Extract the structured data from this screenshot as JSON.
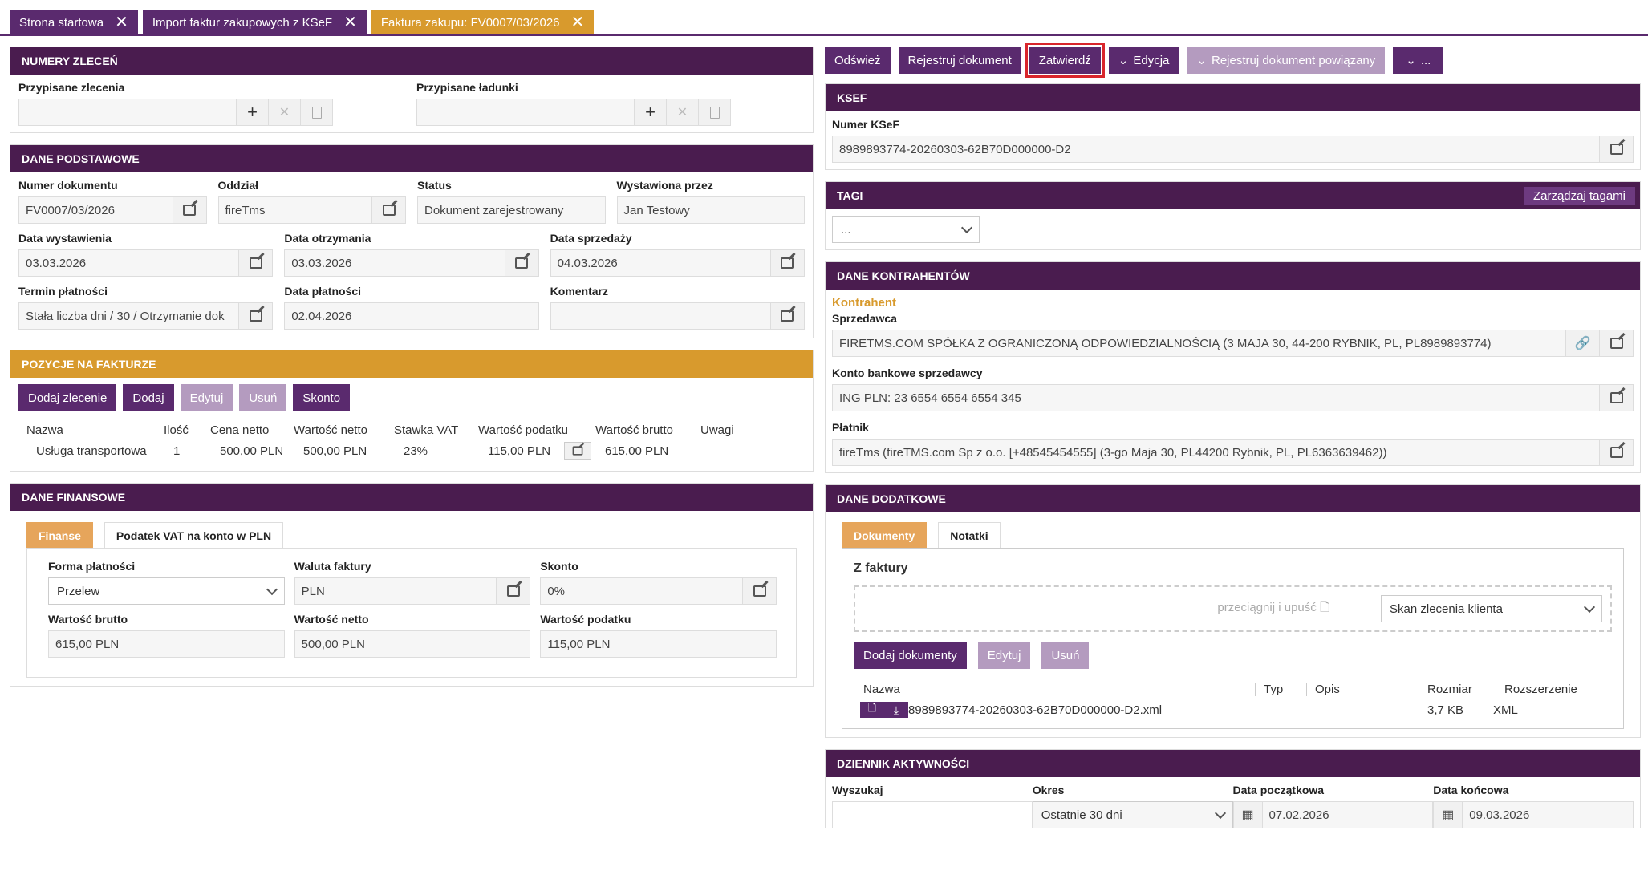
{
  "tabs": [
    {
      "label": "Strona startowa"
    },
    {
      "label": "Import faktur zakupowych z KSeF"
    },
    {
      "label": "Faktura zakupu: FV0007/03/2026"
    }
  ],
  "numery_zlecen": {
    "title": "NUMERY ZLECEŃ",
    "assigned_orders_label": "Przypisane zlecenia",
    "assigned_loads_label": "Przypisane ładunki"
  },
  "dane_podstawowe": {
    "title": "DANE PODSTAWOWE",
    "numer_label": "Numer dokumentu",
    "numer": "FV0007/03/2026",
    "oddzial_label": "Oddział",
    "oddzial": "fireTms",
    "status_label": "Status",
    "status": "Dokument zarejestrowany",
    "wystawiona_label": "Wystawiona przez",
    "wystawiona": "Jan Testowy",
    "data_wyst_label": "Data wystawienia",
    "data_wyst": "03.03.2026",
    "data_otrz_label": "Data otrzymania",
    "data_otrz": "03.03.2026",
    "data_sprz_label": "Data sprzedaży",
    "data_sprz": "04.03.2026",
    "termin_label": "Termin płatności",
    "termin": "Stała liczba dni / 30 / Otrzymanie dok",
    "data_plat_label": "Data płatności",
    "data_plat": "02.04.2026",
    "komentarz_label": "Komentarz",
    "komentarz": ""
  },
  "pozycje": {
    "title": "POZYCJE NA FAKTURZE",
    "buttons": [
      "Dodaj zlecenie",
      "Dodaj",
      "Edytuj",
      "Usuń",
      "Skonto"
    ],
    "headers": [
      "Nazwa",
      "Ilość",
      "Cena netto",
      "Wartość netto",
      "Stawka VAT",
      "Wartość podatku",
      "Wartość brutto",
      "Uwagi"
    ],
    "rows": [
      [
        "Usługa transportowa",
        "1",
        "500,00 PLN",
        "500,00 PLN",
        "23%",
        "115,00 PLN",
        "615,00 PLN",
        ""
      ]
    ]
  },
  "finanse": {
    "title": "DANE FINANSOWE",
    "tabs": [
      "Finanse",
      "Podatek VAT na konto w PLN"
    ],
    "forma_label": "Forma płatności",
    "forma": "Przelew",
    "waluta_label": "Waluta faktury",
    "waluta": "PLN",
    "skonto_label": "Skonto",
    "skonto": "0%",
    "brutto_label": "Wartość brutto",
    "brutto": "615,00 PLN",
    "netto_label": "Wartość netto",
    "netto": "500,00 PLN",
    "podatek_label": "Wartość podatku",
    "podatek": "115,00 PLN"
  },
  "toolbar": {
    "odswiez": "Odśwież",
    "rejestruj": "Rejestruj dokument",
    "zatwierdz": "Zatwierdź",
    "edycja": "Edycja",
    "rejestruj_powiazany": "Rejestruj dokument powiązany",
    "more": "..."
  },
  "ksef": {
    "title": "KSEF",
    "numer_label": "Numer KSeF",
    "numer": "8989893774-20260303-62B70D000000-D2"
  },
  "tagi": {
    "title": "TAGI",
    "manage": "Zarządzaj tagami",
    "select": "..."
  },
  "kontrahenci": {
    "title": "DANE KONTRAHENTÓW",
    "kontrahent": "Kontrahent",
    "sprzedawca_label": "Sprzedawca",
    "sprzedawca": "FIRETMS.COM SPÓŁKA Z OGRANICZONĄ ODPOWIEDZIALNOŚCIĄ (3 MAJA 30, 44-200 RYBNIK, PL, PL8989893774)",
    "konto_label": "Konto bankowe sprzedawcy",
    "konto": "ING PLN: 23 6554 6554 6554 345",
    "platnik_label": "Płatnik",
    "platnik": "fireTms (fireTMS.com Sp z o.o. [+48545454555] (3-go Maja 30, PL44200 Rybnik, PL, PL6363639462))"
  },
  "dodatkowe": {
    "title": "DANE DODATKOWE",
    "tabs": [
      "Dokumenty",
      "Notatki"
    ],
    "z_faktury": "Z faktury",
    "drop": "przeciągnij i upuść",
    "doc_type": "Skan zlecenia klienta",
    "buttons": [
      "Dodaj dokumenty",
      "Edytuj",
      "Usuń"
    ],
    "headers": [
      "Nazwa",
      "Typ",
      "Opis",
      "Rozmiar",
      "Rozszerzenie"
    ],
    "file": {
      "name": "8989893774-20260303-62B70D000000-D2.xml",
      "size": "3,7 KB",
      "ext": "XML"
    }
  },
  "dziennik": {
    "title": "DZIENNIK AKTYWNOŚCI",
    "szukaj_label": "Wyszukaj",
    "okres_label": "Okres",
    "okres": "Ostatnie 30 dni",
    "od_label": "Data początkowa",
    "od": "07.02.2026",
    "do_label": "Data końcowa",
    "do": "09.03.2026"
  },
  "colors": {
    "purple": "#4a1c4f",
    "orange": "#d89a2d",
    "highlight": "#d9262c"
  }
}
